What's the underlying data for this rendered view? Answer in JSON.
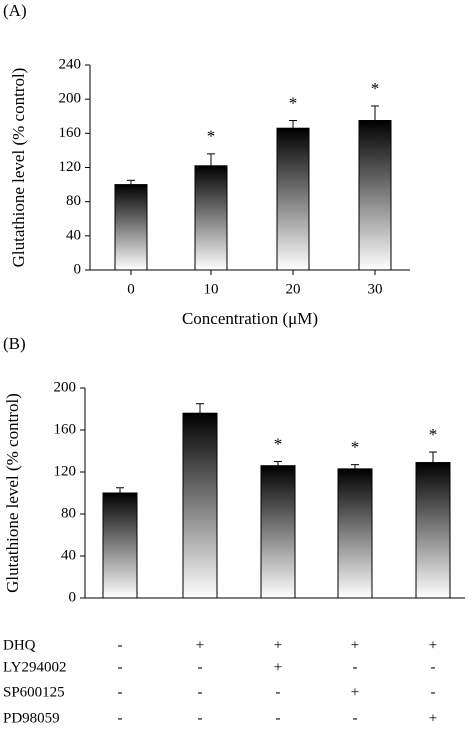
{
  "chart_data": [
    {
      "type": "bar",
      "panel": "(A)",
      "y_label": "Glutathione level (% control)",
      "x_label": "Concentration (μM)",
      "categories": [
        "0",
        "10",
        "20",
        "30"
      ],
      "values": [
        100,
        122,
        166,
        175
      ],
      "errors": [
        5,
        14,
        9,
        17
      ],
      "markers": [
        null,
        "*",
        "*",
        "*"
      ],
      "color": "#000000",
      "ylim": [
        0,
        240
      ],
      "yticks": [
        0,
        40,
        80,
        120,
        160,
        200,
        240
      ]
    },
    {
      "type": "bar",
      "panel": "(B)",
      "y_label": "Glutathione level (% control)",
      "values": [
        100,
        176,
        126,
        123,
        129
      ],
      "errors": [
        5,
        9,
        4,
        4,
        10
      ],
      "markers": [
        null,
        null,
        "*",
        "*",
        "*"
      ],
      "color": "#000000",
      "ylim": [
        0,
        200
      ],
      "yticks": [
        0,
        40,
        80,
        120,
        160,
        200
      ],
      "treatments": [
        {
          "label": "DHQ",
          "cells": [
            "-",
            "+",
            "+",
            "+",
            "+"
          ]
        },
        {
          "label": "LY294002",
          "cells": [
            "-",
            "-",
            "+",
            "-",
            "-"
          ]
        },
        {
          "label": "SP600125",
          "cells": [
            "-",
            "-",
            "-",
            "+",
            "-"
          ]
        },
        {
          "label": "PD98059",
          "cells": [
            "-",
            "-",
            "-",
            "-",
            "+"
          ]
        }
      ]
    }
  ]
}
